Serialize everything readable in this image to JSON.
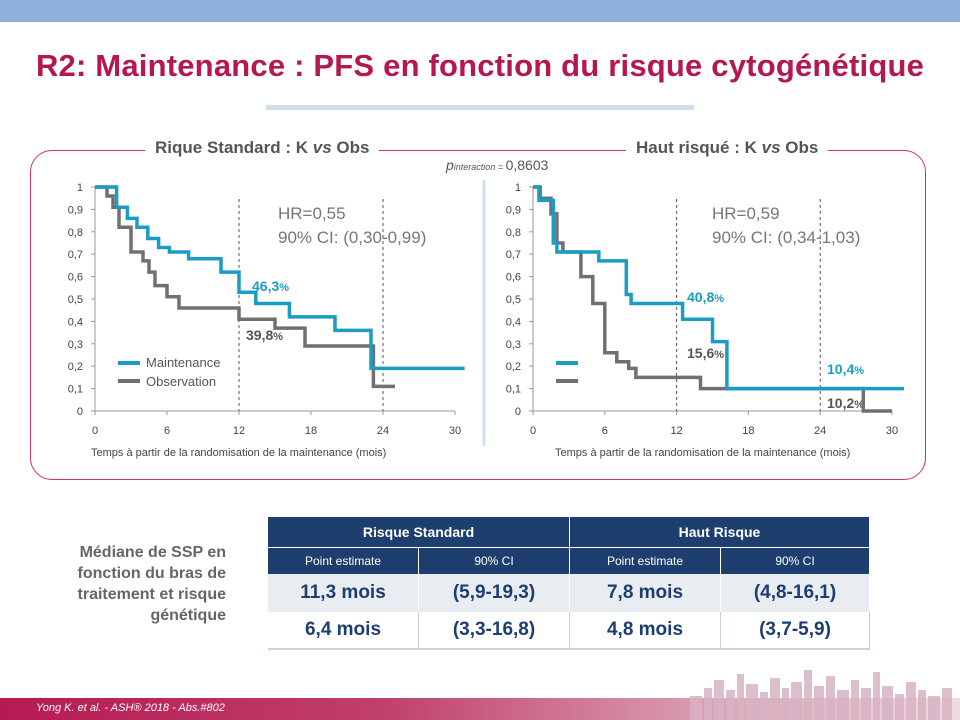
{
  "title": "R2: Maintenance : PFS en fonction du risque cytogénétique",
  "panel_left": {
    "title_a": "Rique Standard  : K ",
    "title_vs": "vs",
    "title_b": " Obs",
    "hr": "HR=0,55",
    "ci": "90% CI: (0,30-0,99)",
    "pct_blue": "46,3",
    "pct_gray": "39,8",
    "legend_maintenance": "Maintenance",
    "legend_observation": "Observation",
    "xlabel": "Temps à partir de la randomisation de la maintenance (mois)"
  },
  "panel_right": {
    "title_a": "Haut risqué  : K ",
    "title_vs": "vs",
    "title_b": " Obs",
    "hr": "HR=0,59",
    "ci": "90% CI: (0,34-1,03)",
    "pct_blue_mid": "40,8",
    "pct_gray_mid": "15,6",
    "pct_blue_end": "10,4",
    "pct_gray_end": "10,2",
    "xlabel": "Temps à partir de la randomisation de la maintenance (mois)"
  },
  "pint": {
    "p": "p",
    "sub": "interaction = ",
    "val": "0,8603"
  },
  "percent_sign": "%",
  "axis": {
    "y_ticks": [
      "1",
      "0,9",
      "0,8",
      "0,7",
      "0,6",
      "0,5",
      "0,4",
      "0,3",
      "0,2",
      "0,1",
      "0"
    ],
    "x_ticks": [
      "0",
      "6",
      "12",
      "18",
      "24",
      "30"
    ]
  },
  "side_caption": [
    "Médiane de SSP en",
    "fonction du bras de",
    "traitement  et risque",
    "génétique"
  ],
  "table": {
    "group1": "Risque Standard",
    "group2": "Haut Risque",
    "sub": [
      "Point estimate",
      "90% CI",
      "Point estimate",
      "90% CI"
    ],
    "rows": [
      [
        "11,3 mois",
        "(5,9-19,3)",
        "7,8 mois",
        "(4,8-16,1)"
      ],
      [
        "6,4 mois",
        "(3,3-16,8)",
        "4,8 mois",
        "(3,7-5,9)"
      ]
    ]
  },
  "footer": "Yong K. et al. - ASH® 2018 - Abs.#802",
  "colors": {
    "accent": "#b5174f",
    "maintenance": "#1a9cc4",
    "observation": "#707070",
    "table_header": "#1d3e6e"
  },
  "chart_data": [
    {
      "type": "line",
      "title": "Rique Standard  : K vs Obs",
      "xlabel": "Temps à partir de la randomisation de la maintenance (mois)",
      "ylabel": "",
      "xlim": [
        0,
        30
      ],
      "ylim": [
        0,
        1
      ],
      "series": [
        {
          "name": "Maintenance",
          "x": [
            0,
            1.8,
            1.8,
            2.7,
            2.7,
            3.5,
            3.5,
            4.4,
            4.4,
            5.3,
            5.3,
            6.2,
            6.2,
            7.8,
            7.8,
            8.5,
            8.5,
            10.5,
            10.5,
            12,
            12,
            13.4,
            13.4,
            16.2,
            16.2,
            20,
            20,
            23,
            23,
            30.8
          ],
          "y": [
            1,
            1,
            0.91,
            0.91,
            0.86,
            0.86,
            0.82,
            0.82,
            0.77,
            0.77,
            0.73,
            0.73,
            0.71,
            0.71,
            0.68,
            0.68,
            0.68,
            0.68,
            0.62,
            0.62,
            0.53,
            0.53,
            0.48,
            0.48,
            0.42,
            0.42,
            0.36,
            0.36,
            0.19,
            0.19
          ]
        },
        {
          "name": "Observation",
          "x": [
            0,
            1,
            1,
            1.5,
            1.5,
            2,
            2,
            3,
            3,
            4,
            4,
            4.5,
            4.5,
            5,
            5,
            6,
            6,
            7,
            7,
            12,
            12,
            15,
            15,
            17.5,
            17.5,
            22.5,
            22.5,
            23.2,
            23.2,
            25
          ],
          "y": [
            1,
            1,
            0.96,
            0.96,
            0.91,
            0.91,
            0.82,
            0.82,
            0.71,
            0.71,
            0.67,
            0.67,
            0.62,
            0.62,
            0.56,
            0.56,
            0.51,
            0.51,
            0.46,
            0.46,
            0.41,
            0.41,
            0.37,
            0.37,
            0.29,
            0.29,
            0.29,
            0.29,
            0.11,
            0.11
          ]
        }
      ],
      "annotations": [
        "HR=0,55",
        "90% CI: (0,30-0,99)",
        "46,3%",
        "39,8%"
      ]
    },
    {
      "type": "line",
      "title": "Haut risqué  : K vs Obs",
      "xlabel": "Temps à partir de la randomisation de la maintenance (mois)",
      "ylabel": "",
      "xlim": [
        0,
        30
      ],
      "ylim": [
        0,
        1
      ],
      "series": [
        {
          "name": "Maintenance",
          "x": [
            0,
            0.5,
            0.5,
            1.7,
            1.7,
            2,
            2,
            3,
            3,
            5.5,
            5.5,
            7.8,
            7.8,
            8.2,
            8.2,
            8.5,
            8.5,
            12.5,
            12.5,
            15,
            15,
            16.2,
            16.2,
            31
          ],
          "y": [
            1,
            1,
            0.94,
            0.94,
            0.75,
            0.75,
            0.71,
            0.71,
            0.71,
            0.71,
            0.67,
            0.67,
            0.52,
            0.52,
            0.48,
            0.48,
            0.48,
            0.48,
            0.41,
            0.41,
            0.31,
            0.31,
            0.1,
            0.1
          ]
        },
        {
          "name": "Observation",
          "x": [
            0,
            0.6,
            0.6,
            1.5,
            1.5,
            2,
            2,
            2.5,
            2.5,
            4,
            4,
            5,
            5,
            6,
            6,
            7,
            7,
            8,
            8,
            8.6,
            8.6,
            14,
            14,
            27.6,
            27.6,
            30
          ],
          "y": [
            1,
            1,
            0.95,
            0.95,
            0.88,
            0.88,
            0.75,
            0.75,
            0.71,
            0.71,
            0.6,
            0.6,
            0.48,
            0.48,
            0.26,
            0.26,
            0.22,
            0.22,
            0.19,
            0.19,
            0.15,
            0.15,
            0.1,
            0.1,
            0,
            0
          ]
        }
      ],
      "annotations": [
        "HR=0,59",
        "90% CI: (0,34-1,03)",
        "40,8%",
        "15,6%",
        "10,4%",
        "10,2%"
      ]
    }
  ]
}
